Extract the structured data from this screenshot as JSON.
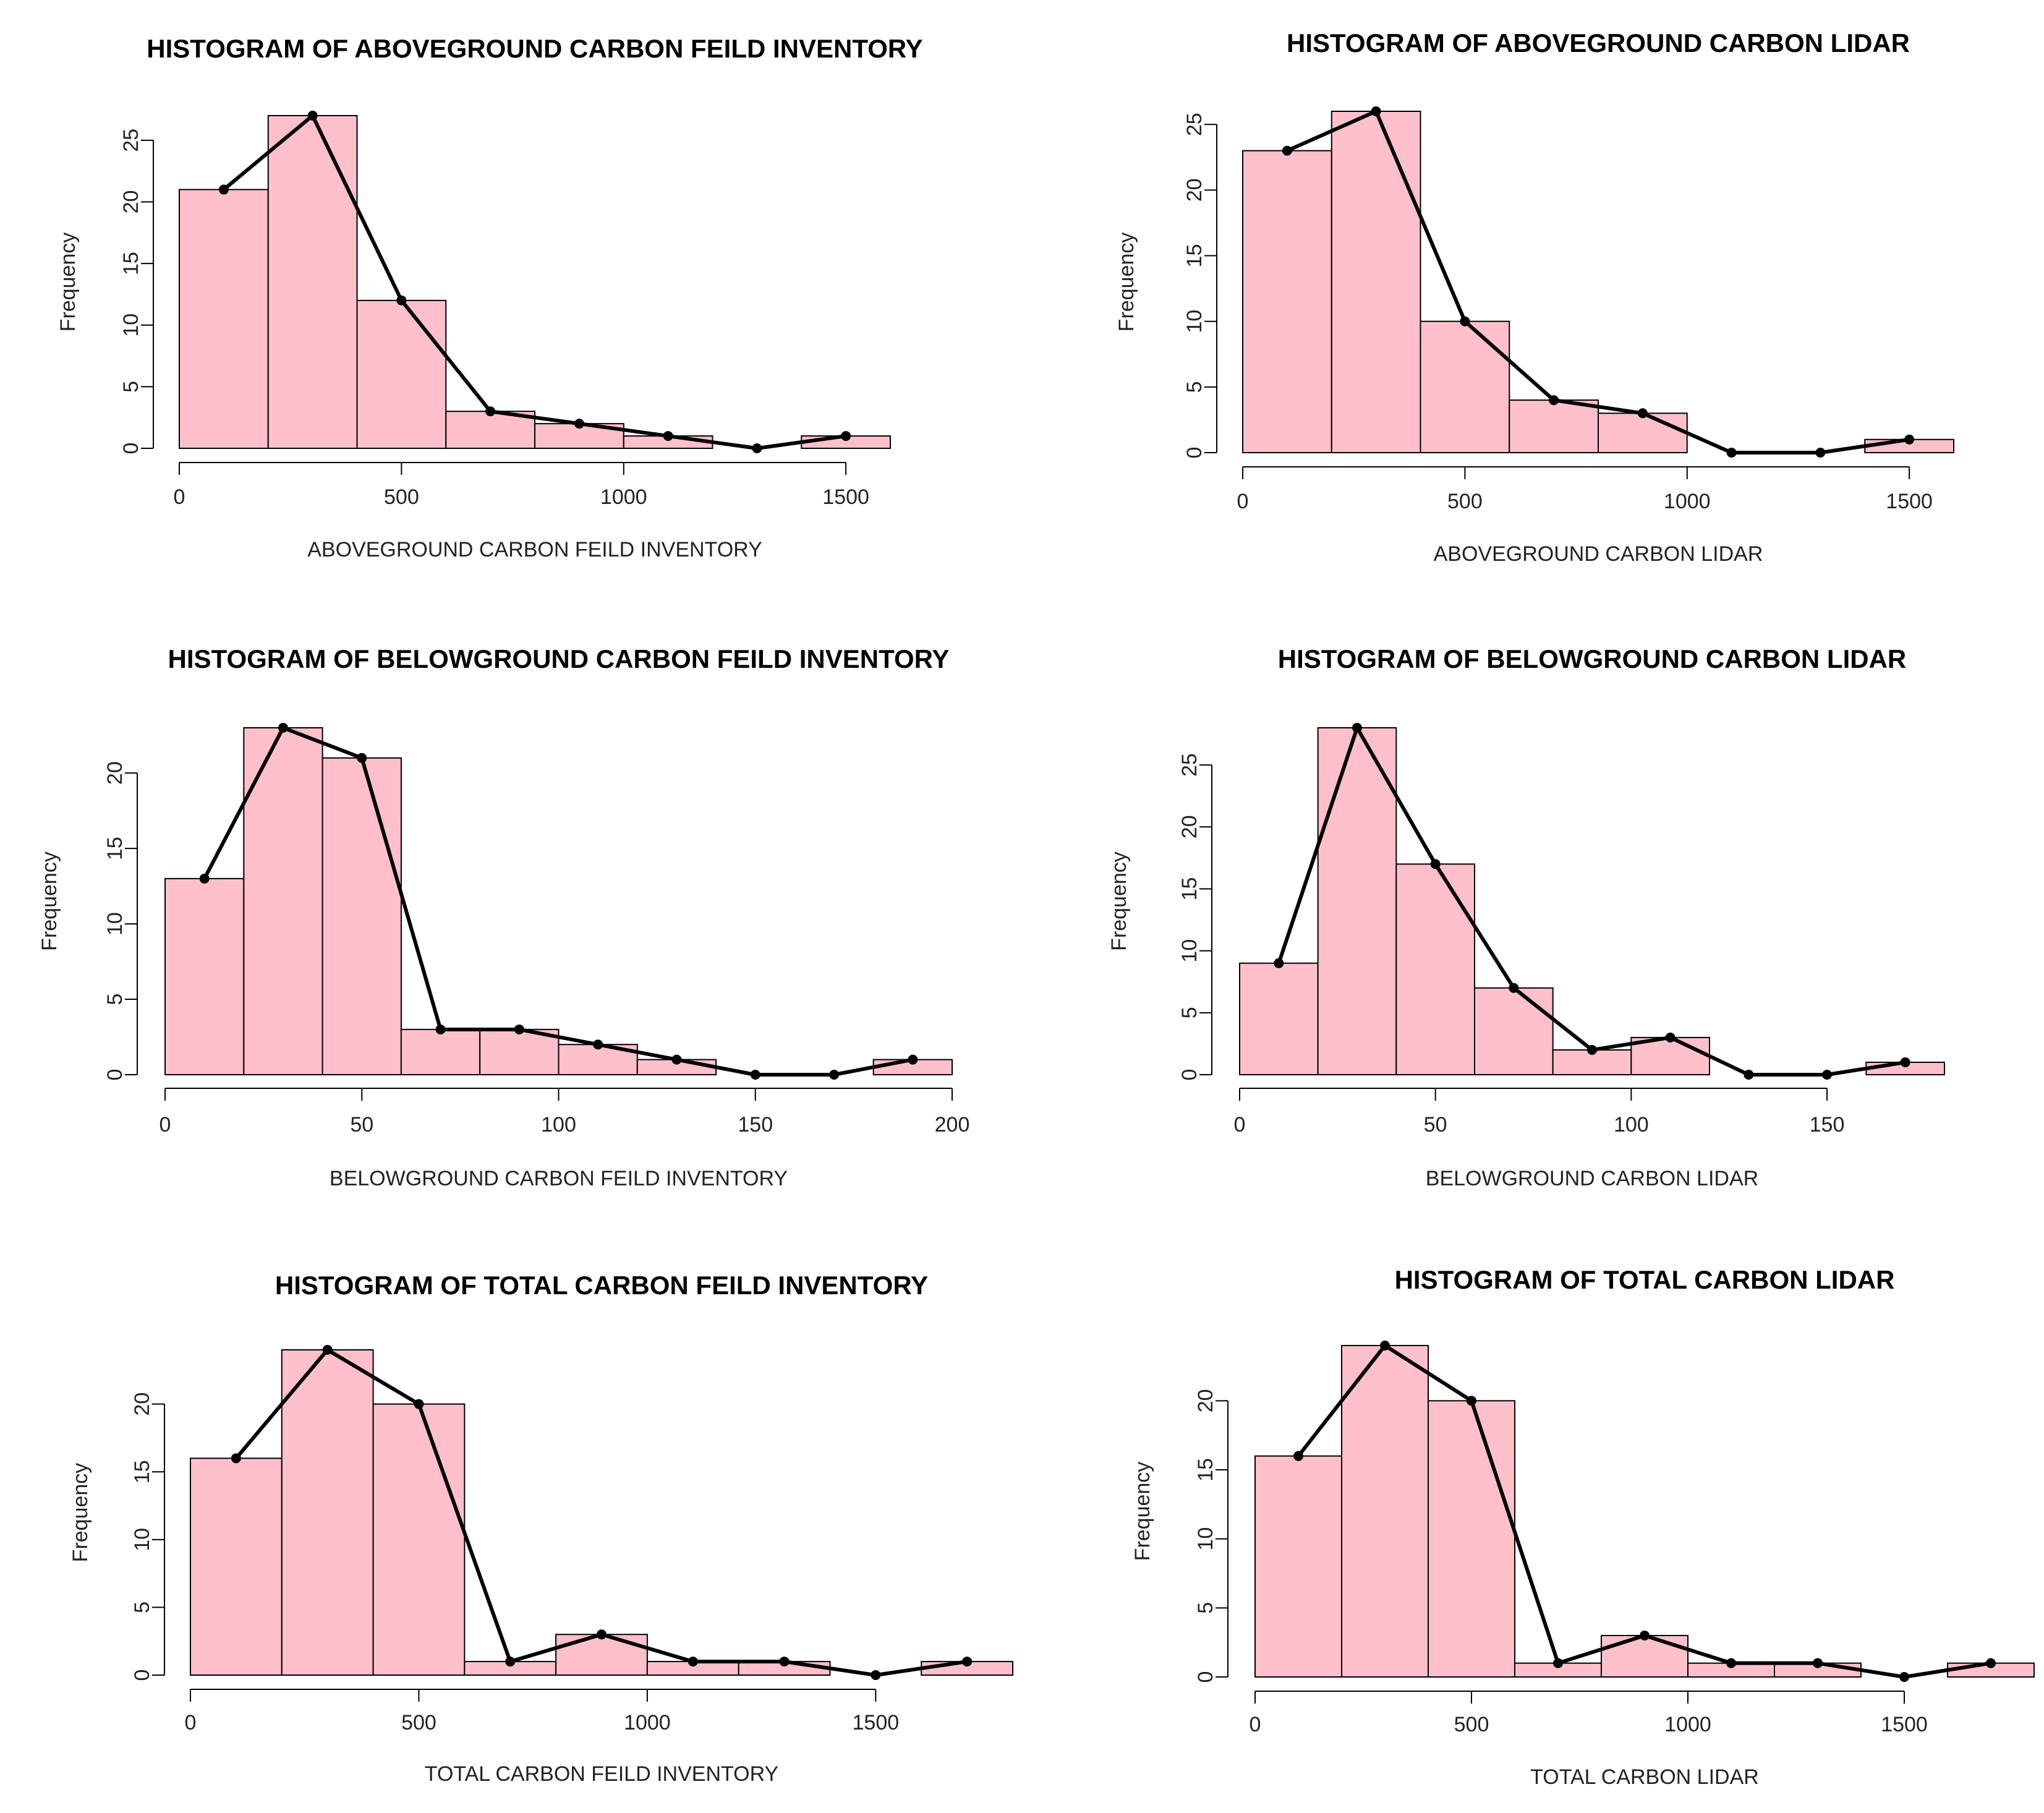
{
  "chart_data": [
    {
      "type": "bar",
      "title": "HISTOGRAM OF ABOVEGROUND CARBON FEILD INVENTORY",
      "xlabel": "ABOVEGROUND CARBON FEILD INVENTORY",
      "ylabel": "Frequency",
      "bin_edges": [
        0,
        200,
        400,
        600,
        800,
        1000,
        1200,
        1400,
        1600
      ],
      "values": [
        21,
        27,
        12,
        3,
        2,
        1,
        0,
        1
      ],
      "x_ticks": [
        0,
        500,
        1000,
        1500
      ],
      "y_ticks": [
        0,
        5,
        10,
        15,
        20,
        25
      ],
      "xlim": [
        0,
        1600
      ],
      "ylim": [
        0,
        27
      ],
      "polygon": {
        "x": [
          100,
          300,
          500,
          700,
          900,
          1100,
          1300,
          1500
        ],
        "y": [
          21,
          27,
          12,
          3,
          2,
          1,
          0,
          1
        ]
      },
      "grid": false
    },
    {
      "type": "bar",
      "title": "HISTOGRAM OF ABOVEGROUND CARBON LIDAR",
      "xlabel": "ABOVEGROUND CARBON LIDAR",
      "ylabel": "Frequency",
      "bin_edges": [
        0,
        200,
        400,
        600,
        800,
        1000,
        1200,
        1400,
        1600
      ],
      "values": [
        23,
        26,
        10,
        4,
        3,
        0,
        0,
        1
      ],
      "x_ticks": [
        0,
        500,
        1000,
        1500
      ],
      "y_ticks": [
        0,
        5,
        10,
        15,
        20,
        25
      ],
      "xlim": [
        0,
        1600
      ],
      "ylim": [
        0,
        26
      ],
      "polygon": {
        "x": [
          100,
          300,
          500,
          700,
          900,
          1100,
          1300,
          1500
        ],
        "y": [
          23,
          26,
          10,
          4,
          3,
          0,
          0,
          1
        ]
      },
      "grid": false
    },
    {
      "type": "bar",
      "title": "HISTOGRAM OF BELOWGROUND CARBON FEILD INVENTORY",
      "xlabel": "BELOWGROUND CARBON FEILD INVENTORY",
      "ylabel": "Frequency",
      "bin_edges": [
        0,
        20,
        40,
        60,
        80,
        100,
        120,
        140,
        160,
        180,
        200
      ],
      "values": [
        13,
        23,
        21,
        3,
        3,
        2,
        1,
        0,
        0,
        1
      ],
      "x_ticks": [
        0,
        50,
        100,
        150,
        200
      ],
      "y_ticks": [
        0,
        5,
        10,
        15,
        20
      ],
      "xlim": [
        0,
        200
      ],
      "ylim": [
        0,
        23
      ],
      "polygon": {
        "x": [
          10,
          30,
          50,
          70,
          90,
          110,
          130,
          150,
          170,
          190
        ],
        "y": [
          13,
          23,
          21,
          3,
          3,
          2,
          1,
          0,
          0,
          1
        ]
      },
      "grid": false
    },
    {
      "type": "bar",
      "title": "HISTOGRAM OF BELOWGROUND CARBON LIDAR",
      "xlabel": "BELOWGROUND CARBON LIDAR",
      "ylabel": "Frequency",
      "bin_edges": [
        0,
        20,
        40,
        60,
        80,
        100,
        120,
        140,
        160,
        180
      ],
      "values": [
        9,
        28,
        17,
        7,
        2,
        3,
        0,
        0,
        1
      ],
      "x_ticks": [
        0,
        50,
        100,
        150
      ],
      "y_ticks": [
        0,
        5,
        10,
        15,
        20,
        25
      ],
      "xlim": [
        0,
        180
      ],
      "ylim": [
        0,
        28
      ],
      "polygon": {
        "x": [
          10,
          30,
          50,
          70,
          90,
          110,
          130,
          150,
          170
        ],
        "y": [
          9,
          28,
          17,
          7,
          2,
          3,
          0,
          0,
          1
        ]
      },
      "grid": false
    },
    {
      "type": "bar",
      "title": "HISTOGRAM OF TOTAL CARBON FEILD INVENTORY",
      "xlabel": "TOTAL CARBON FEILD INVENTORY",
      "ylabel": "Frequency",
      "bin_edges": [
        0,
        200,
        400,
        600,
        800,
        1000,
        1200,
        1400,
        1600,
        1800
      ],
      "values": [
        16,
        24,
        20,
        1,
        3,
        1,
        1,
        0,
        1
      ],
      "x_ticks": [
        0,
        500,
        1000,
        1500
      ],
      "y_ticks": [
        0,
        5,
        10,
        15,
        20
      ],
      "xlim": [
        0,
        1800
      ],
      "ylim": [
        0,
        24
      ],
      "polygon": {
        "x": [
          100,
          300,
          500,
          700,
          900,
          1100,
          1300,
          1500,
          1700
        ],
        "y": [
          16,
          24,
          20,
          1,
          3,
          1,
          1,
          0,
          1
        ]
      },
      "grid": false
    },
    {
      "type": "bar",
      "title": "HISTOGRAM OF TOTAL CARBON LIDAR",
      "xlabel": "TOTAL CARBON LIDAR",
      "ylabel": "Frequency",
      "bin_edges": [
        0,
        200,
        400,
        600,
        800,
        1000,
        1200,
        1400,
        1600,
        1800
      ],
      "values": [
        16,
        24,
        20,
        1,
        3,
        1,
        1,
        0,
        1
      ],
      "x_ticks": [
        0,
        500,
        1000,
        1500
      ],
      "y_ticks": [
        0,
        5,
        10,
        15,
        20
      ],
      "xlim": [
        0,
        1800
      ],
      "ylim": [
        0,
        24
      ],
      "polygon": {
        "x": [
          100,
          300,
          500,
          700,
          900,
          1100,
          1300,
          1500,
          1700
        ],
        "y": [
          16,
          24,
          20,
          1,
          3,
          1,
          1,
          0,
          1
        ]
      },
      "grid": false
    }
  ]
}
